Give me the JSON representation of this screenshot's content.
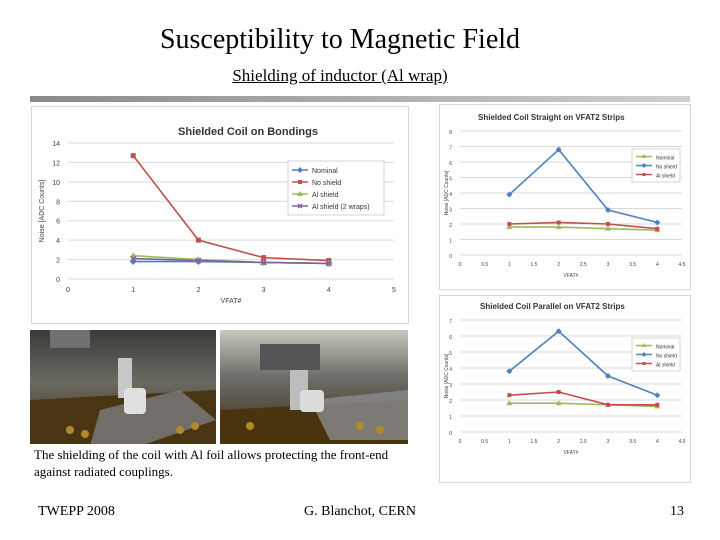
{
  "slide": {
    "title": "Susceptibility to Magnetic Field",
    "subtitle": "Shielding of inductor (Al wrap)",
    "caption": "The shielding of the coil with Al foil allows protecting the front-end against radiated couplings.",
    "footer_left": "TWEPP 2008",
    "footer_center": "G. Blanchot, CERN",
    "page_number": "13"
  },
  "chart_data": [
    {
      "type": "line",
      "title": "Shielded Coil on Bondings",
      "xlabel": "VFAT#",
      "ylabel": "Noise [ADC Counts]",
      "xlim": [
        0,
        5
      ],
      "ylim": [
        0,
        14
      ],
      "xticks": [
        0,
        1,
        2,
        3,
        4,
        5
      ],
      "yticks": [
        0,
        2,
        4,
        6,
        8,
        10,
        12,
        14
      ],
      "grid": true,
      "legend": "right",
      "series": [
        {
          "name": "Nominal",
          "color": "#4f81bd",
          "marker": "diamond",
          "x": [
            1,
            2,
            3,
            4
          ],
          "y": [
            1.8,
            1.8,
            1.7,
            1.6
          ]
        },
        {
          "name": "No shield",
          "color": "#c0504d",
          "marker": "square",
          "x": [
            1,
            2,
            3,
            4
          ],
          "y": [
            12.7,
            4.0,
            2.2,
            1.9
          ]
        },
        {
          "name": "Al shield",
          "color": "#9bbb59",
          "marker": "triangle",
          "x": [
            1,
            2,
            3,
            4
          ],
          "y": [
            2.4,
            2.0,
            1.7,
            1.6
          ]
        },
        {
          "name": "Al shield (2 wraps)",
          "color": "#8064a2",
          "marker": "x",
          "x": [
            1,
            2,
            3,
            4
          ],
          "y": [
            2.1,
            1.9,
            1.7,
            1.6
          ]
        }
      ]
    },
    {
      "type": "line",
      "title": "Shielded Coil Straight on VFAT2 Strips",
      "xlabel": "VFAT#",
      "ylabel": "Noise [ADC Counts]",
      "xlim": [
        0,
        4.5
      ],
      "ylim": [
        0,
        8
      ],
      "xticks": [
        "0",
        "0.5",
        "1",
        "1.5",
        "2",
        "2.5",
        "3",
        "3.5",
        "4",
        "4.5"
      ],
      "yticks": [
        0,
        1,
        2,
        3,
        4,
        5,
        6,
        7,
        8
      ],
      "grid": true,
      "legend": "right",
      "series": [
        {
          "name": "Nominal",
          "color": "#9bbb59",
          "marker": "triangle",
          "x": [
            1,
            2,
            3,
            4
          ],
          "y": [
            1.8,
            1.8,
            1.7,
            1.6
          ]
        },
        {
          "name": "No shield",
          "color": "#4f81bd",
          "marker": "diamond",
          "x": [
            1,
            2,
            3,
            4
          ],
          "y": [
            3.9,
            6.8,
            2.9,
            2.1
          ]
        },
        {
          "name": "Al shield",
          "color": "#c0504d",
          "marker": "square",
          "x": [
            1,
            2,
            3,
            4
          ],
          "y": [
            2.0,
            2.1,
            2.0,
            1.7
          ]
        }
      ]
    },
    {
      "type": "line",
      "title": "Shielded Coil Parallel on VFAT2 Strips",
      "xlabel": "VFAT#",
      "ylabel": "Noise [ADC Counts]",
      "xlim": [
        0,
        4.5
      ],
      "ylim": [
        0,
        7
      ],
      "xticks": [
        "0",
        "0.5",
        "1",
        "1.5",
        "2",
        "2.5",
        "3",
        "3.5",
        "4",
        "4.5"
      ],
      "yticks": [
        0,
        1,
        2,
        3,
        4,
        5,
        6,
        7
      ],
      "grid": true,
      "legend": "right",
      "series": [
        {
          "name": "Nominal",
          "color": "#9bbb59",
          "marker": "triangle",
          "x": [
            1,
            2,
            3,
            4
          ],
          "y": [
            1.8,
            1.8,
            1.7,
            1.6
          ]
        },
        {
          "name": "No shield",
          "color": "#4f81bd",
          "marker": "diamond",
          "x": [
            1,
            2,
            3,
            4
          ],
          "y": [
            3.8,
            6.3,
            3.5,
            2.3
          ]
        },
        {
          "name": "Al shield",
          "color": "#c0504d",
          "marker": "square",
          "x": [
            1,
            2,
            3,
            4
          ],
          "y": [
            2.3,
            2.5,
            1.7,
            1.7
          ]
        }
      ]
    }
  ]
}
